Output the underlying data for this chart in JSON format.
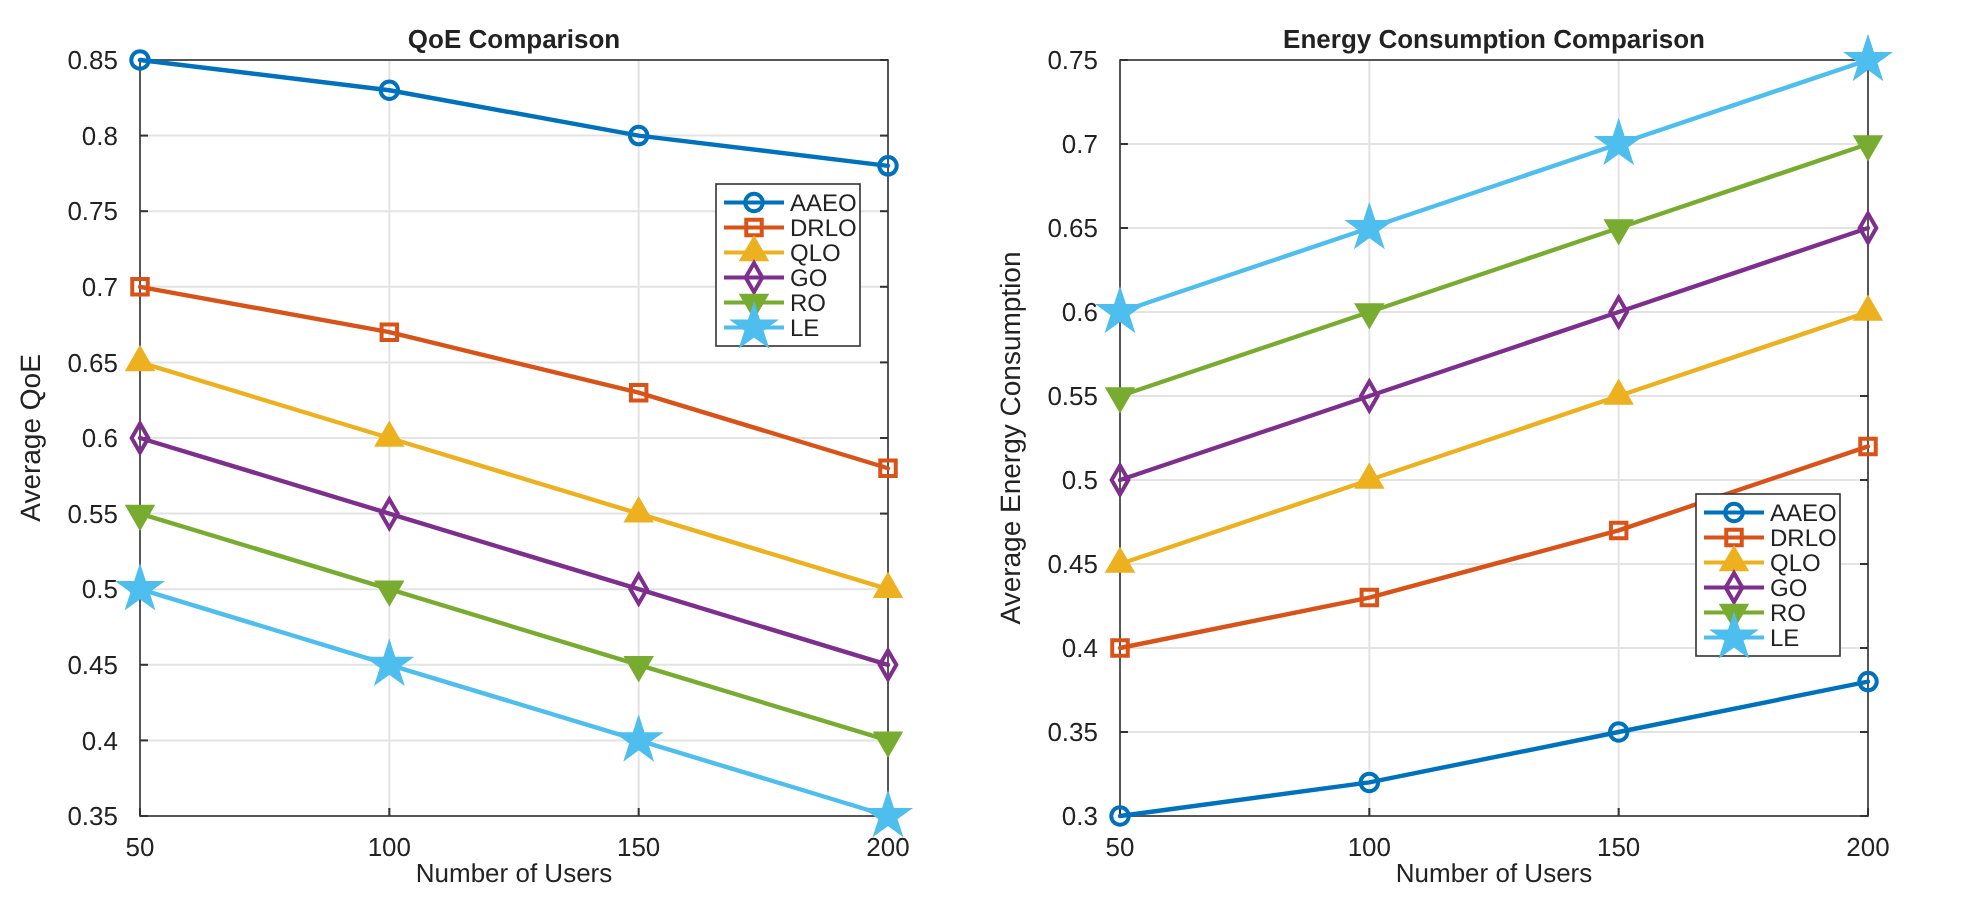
{
  "chart_data": [
    {
      "type": "line",
      "title": "QoE Comparison",
      "xlabel": "Number of Users",
      "ylabel": "Average QoE",
      "x": [
        50,
        100,
        150,
        200
      ],
      "xlim": [
        50,
        200
      ],
      "xticks": [
        50,
        100,
        150,
        200
      ],
      "ylim": [
        0.35,
        0.85
      ],
      "yticks": [
        0.35,
        0.4,
        0.45,
        0.5,
        0.55,
        0.6,
        0.65,
        0.7,
        0.75,
        0.8,
        0.85
      ],
      "grid": true,
      "legend": "top right",
      "line_style": "solid",
      "series": [
        {
          "name": "AAEO",
          "color": "#0072bd",
          "marker": "circle",
          "values": [
            0.85,
            0.83,
            0.8,
            0.78
          ]
        },
        {
          "name": "DRLO",
          "color": "#d95319",
          "marker": "square",
          "values": [
            0.7,
            0.67,
            0.63,
            0.58
          ]
        },
        {
          "name": "QLO",
          "color": "#edb120",
          "marker": "triangle",
          "values": [
            0.65,
            0.6,
            0.55,
            0.5
          ]
        },
        {
          "name": "GO",
          "color": "#7e2f8e",
          "marker": "diamond",
          "values": [
            0.6,
            0.55,
            0.5,
            0.45
          ]
        },
        {
          "name": "RO",
          "color": "#77ac30",
          "marker": "triangle-down",
          "values": [
            0.55,
            0.5,
            0.45,
            0.4
          ]
        },
        {
          "name": "LE",
          "color": "#4dbeee",
          "marker": "star",
          "values": [
            0.5,
            0.45,
            0.4,
            0.35
          ]
        }
      ]
    },
    {
      "type": "line",
      "title": "Energy Consumption Comparison",
      "xlabel": "Number of Users",
      "ylabel": "Average Energy Consumption",
      "x": [
        50,
        100,
        150,
        200
      ],
      "xlim": [
        50,
        200
      ],
      "xticks": [
        50,
        100,
        150,
        200
      ],
      "ylim": [
        0.3,
        0.75
      ],
      "yticks": [
        0.3,
        0.35,
        0.4,
        0.45,
        0.5,
        0.55,
        0.6,
        0.65,
        0.7,
        0.75
      ],
      "grid": true,
      "legend": "bottom right",
      "line_style": "solid",
      "series": [
        {
          "name": "AAEO",
          "color": "#0072bd",
          "marker": "circle",
          "values": [
            0.3,
            0.32,
            0.35,
            0.38
          ]
        },
        {
          "name": "DRLO",
          "color": "#d95319",
          "marker": "square",
          "values": [
            0.4,
            0.43,
            0.47,
            0.52
          ]
        },
        {
          "name": "QLO",
          "color": "#edb120",
          "marker": "triangle",
          "values": [
            0.45,
            0.5,
            0.55,
            0.6
          ]
        },
        {
          "name": "GO",
          "color": "#7e2f8e",
          "marker": "diamond",
          "values": [
            0.5,
            0.55,
            0.6,
            0.65
          ]
        },
        {
          "name": "RO",
          "color": "#77ac30",
          "marker": "triangle-down",
          "values": [
            0.55,
            0.6,
            0.65,
            0.7
          ]
        },
        {
          "name": "LE",
          "color": "#4dbeee",
          "marker": "star",
          "values": [
            0.6,
            0.65,
            0.7,
            0.75
          ]
        }
      ]
    }
  ]
}
